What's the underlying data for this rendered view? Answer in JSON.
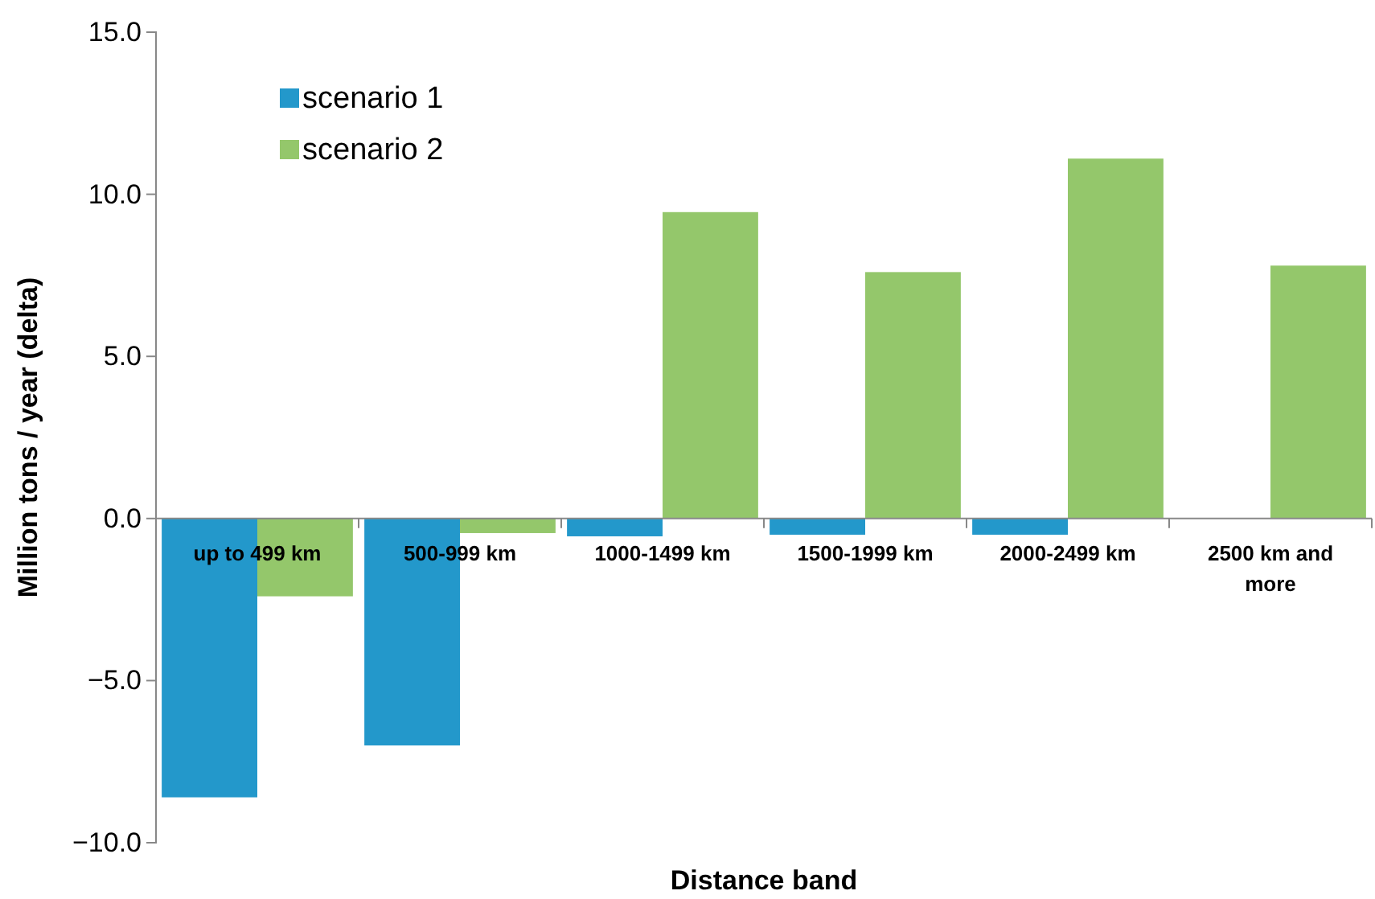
{
  "chart_data": {
    "type": "bar",
    "xlabel": "Distance band",
    "ylabel": "Million tons / year (delta)",
    "categories": [
      "up to 499 km",
      "500-999 km",
      "1000-1499 km",
      "1500-1999 km",
      "2000-2499 km",
      "2500 km and more"
    ],
    "series": [
      {
        "name": "scenario 1",
        "color": "#2398cb",
        "values": [
          -8.6,
          -7.0,
          -0.55,
          -0.5,
          -0.5,
          0
        ]
      },
      {
        "name": "scenario 2",
        "color": "#94c76b",
        "values": [
          -2.4,
          -0.45,
          9.45,
          7.6,
          11.1,
          7.8
        ]
      }
    ],
    "ylim": [
      -10,
      15
    ],
    "yticks": [
      {
        "value": -10,
        "label": "−10.0"
      },
      {
        "value": -5,
        "label": "−5.0"
      },
      {
        "value": 0,
        "label": "0.0"
      },
      {
        "value": 5,
        "label": "5.0"
      },
      {
        "value": 10,
        "label": "10.0"
      },
      {
        "value": 15,
        "label": "15.0"
      }
    ],
    "grid": false,
    "legend": "top left"
  }
}
